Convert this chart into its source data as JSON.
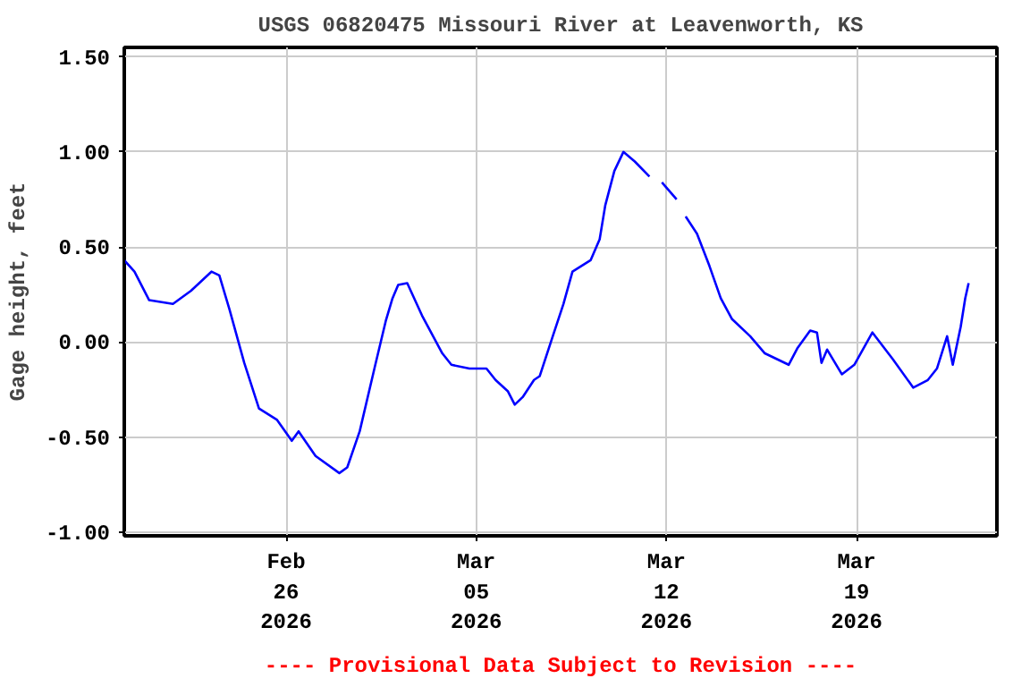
{
  "chart_data": {
    "type": "line",
    "title": "USGS 06820475 Missouri River at Leavenworth, KS",
    "ylabel": "Gage height, feet",
    "annotations": [
      "---- Provisional Data Subject to Revision ----"
    ],
    "xlim": [
      "2026-02-20T01:00",
      "2026-03-24T04:00"
    ],
    "xticks": [
      {
        "value": "2026-02-26",
        "label": "Feb\n26\n2026"
      },
      {
        "value": "2026-03-05",
        "label": "Mar\n05\n2026"
      },
      {
        "value": "2026-03-12",
        "label": "Mar\n12\n2026"
      },
      {
        "value": "2026-03-19",
        "label": "Mar\n19\n2026"
      }
    ],
    "ylim": [
      -1.02,
      1.55
    ],
    "yticks": [
      {
        "value": -1.0,
        "label": "-1.00"
      },
      {
        "value": -0.5,
        "label": "-0.50"
      },
      {
        "value": 0,
        "label": "0.00"
      },
      {
        "value": 0.5,
        "label": "0.50"
      },
      {
        "value": 1.0,
        "label": "1.00"
      },
      {
        "value": 1.5,
        "label": "1.50"
      }
    ],
    "grid": true,
    "marker": "none",
    "line_style": "solid",
    "series": [
      {
        "color": "#0000ff",
        "x": [
          "2026-02-20T01:00",
          "2026-02-20T10:00",
          "2026-02-20T23:00",
          "2026-02-21T20:00",
          "2026-02-22T12:00",
          "2026-02-23T06:00",
          "2026-02-23T13:00",
          "2026-02-23T22:00",
          "2026-02-24T11:00",
          "2026-02-25T00:00",
          "2026-02-25T16:00",
          "2026-02-26T05:00",
          "2026-02-26T11:00",
          "2026-02-27T02:00",
          "2026-02-27T23:00",
          "2026-02-28T06:00",
          "2026-02-28T17:00",
          "2026-03-01T06:00",
          "2026-03-01T16:00",
          "2026-03-01T22:00",
          "2026-03-02T03:00",
          "2026-03-02T11:00",
          "2026-03-03T00:00",
          "2026-03-03T18:00",
          "2026-03-04T02:00",
          "2026-03-04T18:00",
          "2026-03-05T09:00",
          "2026-03-05T17:00",
          "2026-03-06T04:00",
          "2026-03-06T10:00",
          "2026-03-06T17:00",
          "2026-03-07T03:00",
          "2026-03-07T08:00",
          "2026-03-07T19:00",
          "2026-03-08T05:00",
          "2026-03-08T13:00",
          "2026-03-09T05:00",
          "2026-03-09T13:00",
          "2026-03-09T18:00",
          "2026-03-10T02:00",
          "2026-03-10T10:00",
          "2026-03-10T20:00",
          "2026-03-11T09:00",
          "2026-03-11T15:00",
          "2026-03-11T20:00",
          "2026-03-12T09:00",
          "2026-03-12T12:00",
          "2026-03-12T17:00",
          "2026-03-13T03:00",
          "2026-03-13T14:00",
          "2026-03-14T00:00",
          "2026-03-14T10:00",
          "2026-03-15T02:00",
          "2026-03-15T15:00",
          "2026-03-16T12:00",
          "2026-03-16T20:00",
          "2026-03-17T07:00",
          "2026-03-17T13:00",
          "2026-03-17T17:00",
          "2026-03-17T22:00",
          "2026-03-18T11:00",
          "2026-03-18T22:00",
          "2026-03-19T14:00",
          "2026-03-20T08:00",
          "2026-03-21T02:00",
          "2026-03-21T15:00",
          "2026-03-21T23:00",
          "2026-03-22T08:00",
          "2026-03-22T13:00",
          "2026-03-22T20:00",
          "2026-03-23T00:00",
          "2026-03-23T03:00"
        ],
        "values": [
          0.43,
          0.37,
          0.22,
          0.2,
          0.27,
          0.37,
          0.35,
          0.17,
          -0.11,
          -0.35,
          -0.41,
          -0.52,
          -0.47,
          -0.6,
          -0.69,
          -0.66,
          -0.47,
          -0.14,
          0.11,
          0.23,
          0.3,
          0.31,
          0.14,
          -0.06,
          -0.12,
          -0.14,
          -0.14,
          -0.2,
          -0.26,
          -0.33,
          -0.29,
          -0.2,
          -0.18,
          0.02,
          0.2,
          0.37,
          0.43,
          0.54,
          0.72,
          0.9,
          1.0,
          0.95,
          0.87,
          null,
          0.84,
          0.75,
          null,
          0.66,
          0.57,
          0.4,
          0.23,
          0.12,
          0.03,
          -0.06,
          -0.12,
          -0.03,
          0.06,
          0.05,
          -0.11,
          -0.04,
          -0.17,
          -0.12,
          0.05,
          -0.09,
          -0.24,
          -0.2,
          -0.14,
          0.03,
          -0.12,
          0.08,
          0.23,
          0.31
        ]
      }
    ]
  }
}
